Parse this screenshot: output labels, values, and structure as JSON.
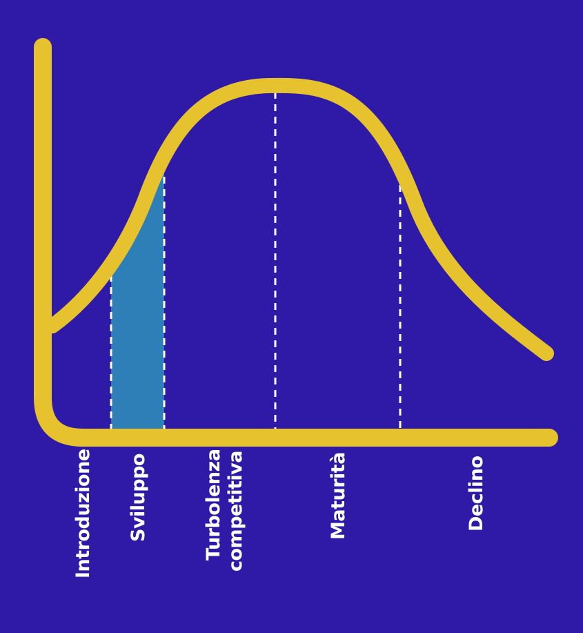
{
  "colors": {
    "background": "#2e1aa6",
    "curve": "#e6c22e",
    "axis": "#e6c22e",
    "highlight": "#2e7fb8",
    "divider": "#ffffff",
    "label": "#ffffff"
  },
  "stages": [
    {
      "label": "Introduzione"
    },
    {
      "label": "Sviluppo",
      "highlighted": true
    },
    {
      "label_line1": "Turbolenza",
      "label_line2": "competitiva"
    },
    {
      "label": "Maturità"
    },
    {
      "label": "Declino"
    }
  ]
}
